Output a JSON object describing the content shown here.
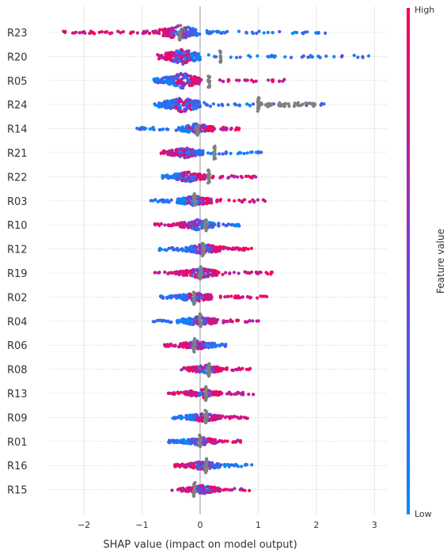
{
  "chart_data": {
    "type": "scatter",
    "subtype": "beeswarm",
    "xlabel": "SHAP value (impact on model output)",
    "xlim": [
      -2.6,
      3.2
    ],
    "xticks": [
      -2,
      -1,
      0,
      1,
      2,
      3
    ],
    "xtick_labels": [
      "−2",
      "−1",
      "0",
      "1",
      "2",
      "3"
    ],
    "grid": "vertical",
    "colorbar": {
      "label": "Feature value",
      "high_label": "High",
      "low_label": "Low",
      "colors": [
        "#008bfb",
        "#ff0052"
      ]
    },
    "missing_color": "#808080",
    "features": [
      {
        "name": "R23",
        "min": -2.4,
        "max": 2.2,
        "mode": -0.35,
        "left_color": "high",
        "right_color": "low",
        "density": 0.9,
        "gray": [
          -0.35,
          -0.3
        ]
      },
      {
        "name": "R20",
        "min": -0.75,
        "max": 3.0,
        "mode": -0.3,
        "left_color": "high",
        "right_color": "low",
        "density": 0.9,
        "gray": [
          0.35,
          0.35
        ]
      },
      {
        "name": "R05",
        "min": -0.8,
        "max": 1.45,
        "mode": -0.3,
        "left_color": "low",
        "right_color": "high",
        "density": 0.9,
        "gray": [
          0.15,
          0.15
        ]
      },
      {
        "name": "R24",
        "min": -0.8,
        "max": 2.15,
        "mode": -0.3,
        "left_color": "low",
        "right_color": "low",
        "density": 0.9,
        "gray": [
          1.0,
          2.0
        ]
      },
      {
        "name": "R14",
        "min": -1.1,
        "max": 0.7,
        "mode": -0.05,
        "left_color": "low",
        "right_color": "high",
        "density": 0.6,
        "gray": [
          -0.05,
          -0.05
        ]
      },
      {
        "name": "R21",
        "min": -0.7,
        "max": 1.1,
        "mode": -0.25,
        "left_color": "high",
        "right_color": "low",
        "density": 0.6,
        "gray": [
          0.25,
          0.25
        ]
      },
      {
        "name": "R22",
        "min": -0.65,
        "max": 1.0,
        "mode": -0.2,
        "left_color": "low",
        "right_color": "high",
        "density": 0.6,
        "gray": [
          0.15,
          0.15
        ]
      },
      {
        "name": "R03",
        "min": -0.85,
        "max": 1.15,
        "mode": -0.1,
        "left_color": "low",
        "right_color": "high",
        "density": 0.6,
        "gray": [
          -0.1,
          -0.1
        ]
      },
      {
        "name": "R10",
        "min": -0.8,
        "max": 0.7,
        "mode": -0.05,
        "left_color": "high",
        "right_color": "low",
        "density": 0.6,
        "gray": [
          0.1,
          0.1
        ]
      },
      {
        "name": "R12",
        "min": -0.7,
        "max": 0.9,
        "mode": 0.05,
        "left_color": "low",
        "right_color": "high",
        "density": 0.6,
        "gray": [
          0.05,
          0.05
        ]
      },
      {
        "name": "R19",
        "min": -0.8,
        "max": 1.25,
        "mode": 0.0,
        "left_color": "high",
        "right_color": "high",
        "density": 0.6,
        "gray": [
          0.0,
          0.0
        ]
      },
      {
        "name": "R02",
        "min": -0.7,
        "max": 1.15,
        "mode": -0.1,
        "left_color": "low",
        "right_color": "high",
        "density": 0.6,
        "gray": [
          -0.1,
          -0.1
        ]
      },
      {
        "name": "R04",
        "min": -0.85,
        "max": 1.05,
        "mode": 0.0,
        "left_color": "low",
        "right_color": "high",
        "density": 0.6,
        "gray": [
          0.0,
          0.0
        ]
      },
      {
        "name": "R06",
        "min": -0.65,
        "max": 0.45,
        "mode": -0.05,
        "left_color": "high",
        "right_color": "low",
        "density": 0.5,
        "gray": [
          -0.1,
          -0.1
        ]
      },
      {
        "name": "R08",
        "min": -0.35,
        "max": 0.95,
        "mode": 0.1,
        "left_color": "high",
        "right_color": "high",
        "density": 0.5,
        "gray": [
          0.15,
          0.15
        ]
      },
      {
        "name": "R13",
        "min": -0.55,
        "max": 0.95,
        "mode": 0.05,
        "left_color": "high",
        "right_color": "high",
        "density": 0.5,
        "gray": [
          0.1,
          0.1
        ]
      },
      {
        "name": "R09",
        "min": -0.5,
        "max": 0.85,
        "mode": 0.05,
        "left_color": "low",
        "right_color": "high",
        "density": 0.5,
        "gray": [
          0.1,
          0.1
        ]
      },
      {
        "name": "R01",
        "min": -0.55,
        "max": 0.7,
        "mode": 0.0,
        "left_color": "low",
        "right_color": "high",
        "density": 0.5,
        "gray": [
          0.0,
          0.0
        ]
      },
      {
        "name": "R16",
        "min": -0.45,
        "max": 0.9,
        "mode": 0.05,
        "left_color": "high",
        "right_color": "low",
        "density": 0.5,
        "gray": [
          0.1,
          0.1
        ]
      },
      {
        "name": "R15",
        "min": -0.5,
        "max": 0.85,
        "mode": 0.05,
        "left_color": "high",
        "right_color": "high",
        "density": 0.5,
        "gray": [
          -0.1,
          -0.1
        ]
      }
    ]
  }
}
